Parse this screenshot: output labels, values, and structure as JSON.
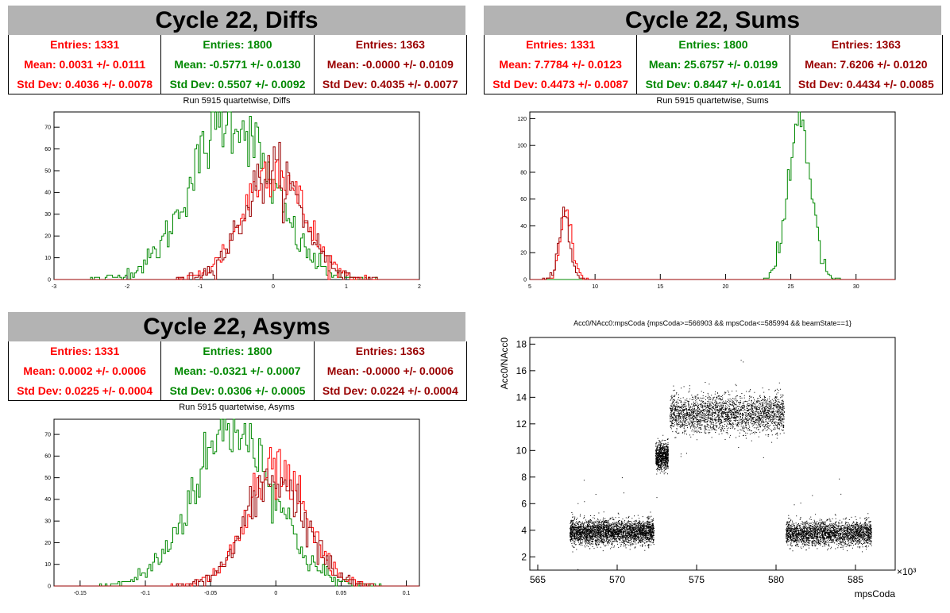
{
  "diffs": {
    "title": "Cycle 22, Diffs",
    "subtitle": "Run 5915 quartetwise, Diffs",
    "stats": [
      {
        "color": "#ff0000",
        "entries": "Entries: 1331",
        "mean": "Mean: 0.0031 +/- 0.0111",
        "std": "Std Dev: 0.4036 +/- 0.0078"
      },
      {
        "color": "#008800",
        "entries": "Entries: 1800",
        "mean": "Mean: -0.5771 +/- 0.0130",
        "std": "Std Dev: 0.5507 +/- 0.0092"
      },
      {
        "color": "#990000",
        "entries": "Entries: 1363",
        "mean": "Mean: -0.0000 +/- 0.0109",
        "std": "Std Dev: 0.4035 +/- 0.0077"
      }
    ]
  },
  "sums": {
    "title": "Cycle 22, Sums",
    "subtitle": "Run 5915 quartetwise, Sums",
    "stats": [
      {
        "color": "#ff0000",
        "entries": "Entries: 1331",
        "mean": "Mean: 7.7784 +/- 0.0123",
        "std": "Std Dev: 0.4473 +/- 0.0087"
      },
      {
        "color": "#008800",
        "entries": "Entries: 1800",
        "mean": "Mean: 25.6757 +/- 0.0199",
        "std": "Std Dev: 0.8447 +/- 0.0141"
      },
      {
        "color": "#990000",
        "entries": "Entries: 1363",
        "mean": "Mean: 7.6206 +/- 0.0120",
        "std": "Std Dev: 0.4434 +/- 0.0085"
      }
    ]
  },
  "asyms": {
    "title": "Cycle 22, Asyms",
    "subtitle": "Run 5915 quartetwise, Asyms",
    "stats": [
      {
        "color": "#ff0000",
        "entries": "Entries: 1331",
        "mean": "Mean: 0.0002 +/- 0.0006",
        "std": "Std Dev: 0.0225 +/- 0.0004"
      },
      {
        "color": "#008800",
        "entries": "Entries: 1800",
        "mean": "Mean: -0.0321 +/- 0.0007",
        "std": "Std Dev: 0.0306 +/- 0.0005"
      },
      {
        "color": "#990000",
        "entries": "Entries: 1363",
        "mean": "Mean: -0.0000 +/- 0.0006",
        "std": "Std Dev: 0.0224 +/- 0.0004"
      }
    ]
  },
  "scatter": {
    "title": "Acc0/NAcc0:mpsCoda {mpsCoda>=566903 && mpsCoda<=585994 && beamState==1}",
    "ylabel": "Acc0/NAcc0",
    "xlabel": "mpsCoda",
    "multiplier": "×10³"
  },
  "chart_data": [
    {
      "type": "line",
      "subtype": "histogram",
      "title": "Run 5915 quartetwise, Diffs",
      "xlim": [
        -3,
        2
      ],
      "ylim": [
        0,
        77
      ],
      "xticks": [
        -3,
        -2,
        -1,
        0,
        1,
        2
      ],
      "yticks": [
        0,
        10,
        20,
        30,
        40,
        50,
        60,
        70
      ],
      "series": [
        {
          "color": "#008800",
          "mean": -0.5771,
          "std": 0.5507,
          "peak": 74
        },
        {
          "color": "#ff0000",
          "mean": 0.0031,
          "std": 0.4036,
          "peak": 52
        },
        {
          "color": "#990000",
          "mean": 0.0,
          "std": 0.4035,
          "peak": 50
        }
      ]
    },
    {
      "type": "line",
      "subtype": "histogram",
      "title": "Run 5915 quartetwise, Sums",
      "xlim": [
        5,
        33
      ],
      "ylim": [
        0,
        125
      ],
      "xticks": [
        5,
        10,
        15,
        20,
        25,
        30
      ],
      "yticks": [
        0,
        20,
        40,
        60,
        80,
        100,
        120
      ],
      "series": [
        {
          "color": "#008800",
          "mean": 25.6757,
          "std": 0.8447,
          "peak": 122
        },
        {
          "color": "#ff0000",
          "mean": 7.7784,
          "std": 0.4473,
          "peak": 48
        },
        {
          "color": "#990000",
          "mean": 7.6206,
          "std": 0.4434,
          "peak": 45
        }
      ]
    },
    {
      "type": "line",
      "subtype": "histogram",
      "title": "Run 5915 quartetwise, Asyms",
      "xlim": [
        -0.17,
        0.11
      ],
      "ylim": [
        0,
        77
      ],
      "xticks": [
        -0.15,
        -0.1,
        -0.05,
        0,
        0.05,
        0.1
      ],
      "yticks": [
        0,
        10,
        20,
        30,
        40,
        50,
        60,
        70
      ],
      "series": [
        {
          "color": "#008800",
          "mean": -0.0321,
          "std": 0.0306,
          "peak": 74
        },
        {
          "color": "#ff0000",
          "mean": 0.0002,
          "std": 0.0225,
          "peak": 52
        },
        {
          "color": "#990000",
          "mean": 0.0,
          "std": 0.0224,
          "peak": 50
        }
      ]
    },
    {
      "type": "scatter",
      "title": "Acc0/NAcc0:mpsCoda {mpsCoda>=566903 && mpsCoda<=585994 && beamState==1}",
      "xlabel": "mpsCoda",
      "ylabel": "Acc0/NAcc0",
      "xlim": [
        564.5,
        587.5
      ],
      "ylim": [
        1,
        18.5
      ],
      "xticks": [
        565,
        570,
        575,
        580,
        585
      ],
      "yticks": [
        2,
        4,
        6,
        8,
        10,
        12,
        14,
        16,
        18
      ],
      "clusters": [
        {
          "x": [
            567.0,
            572.3
          ],
          "y_center": 3.9,
          "y_spread": 0.45
        },
        {
          "x": [
            572.4,
            573.2
          ],
          "y_center": 9.6,
          "y_spread": 0.5
        },
        {
          "x": [
            573.3,
            580.5
          ],
          "y_center": 12.8,
          "y_spread": 0.7
        },
        {
          "x": [
            580.6,
            586.0
          ],
          "y_center": 3.8,
          "y_spread": 0.45
        }
      ]
    }
  ]
}
